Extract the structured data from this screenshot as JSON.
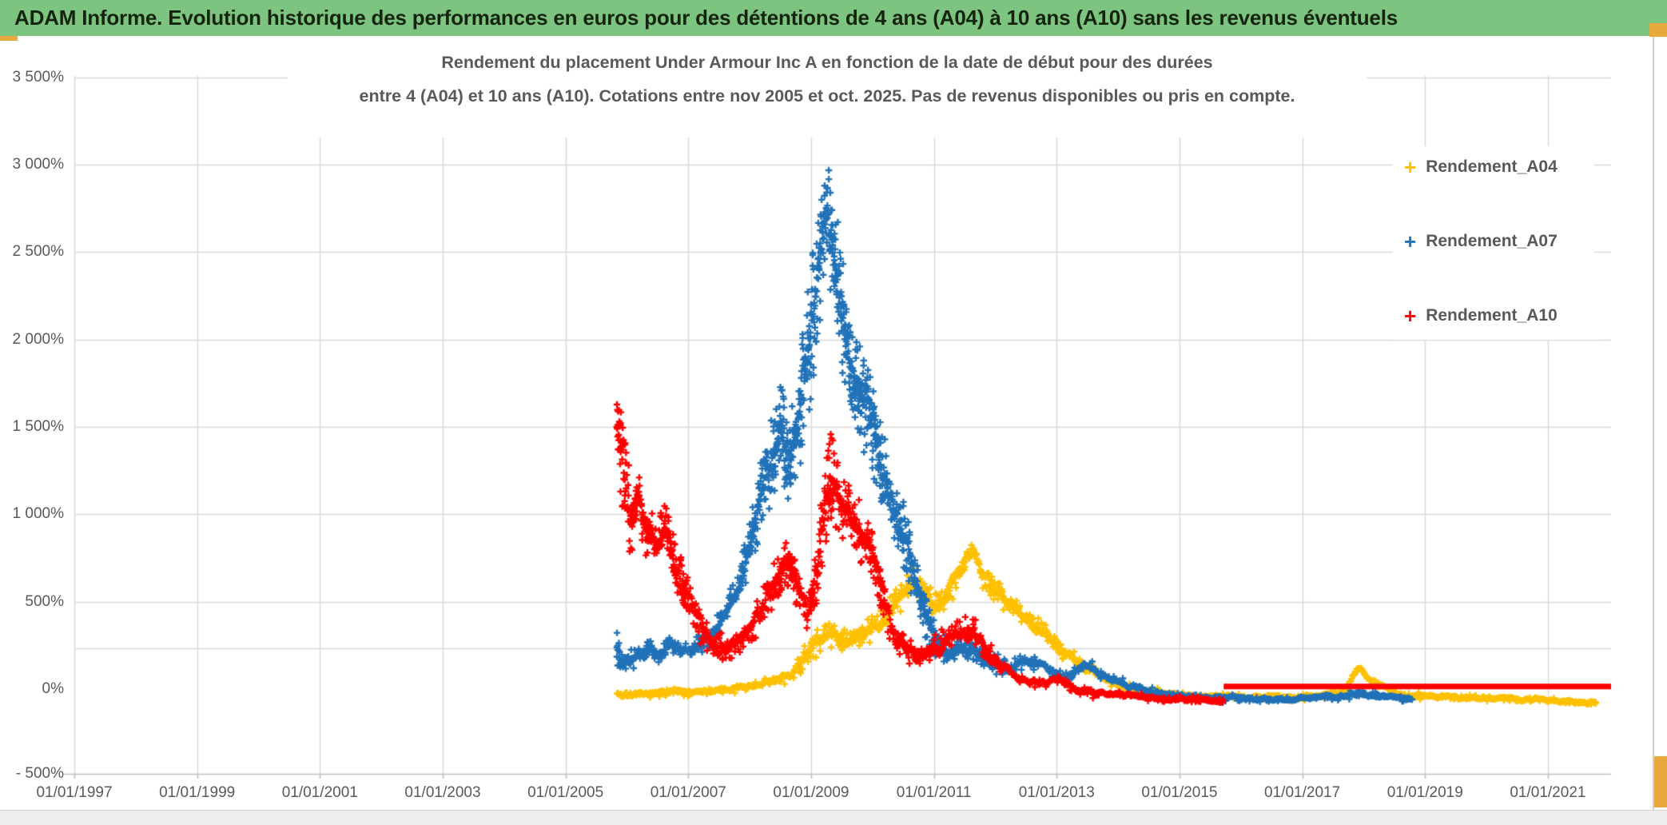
{
  "banner": {
    "title": "ADAM Informe. Evolution historique des performances en euros pour des détentions de 4 ans (A04) à 10 ans (A10) sans les revenus éventuels",
    "background_color": "#7CC47F"
  },
  "chart": {
    "title_line1": "Rendement du placement Under Armour Inc A en fonction de la date de début pour des durées",
    "title_line2": "entre 4 (A04) et 10 ans (A10). Cotations entre nov 2005 et oct. 2025. Pas de revenus disponibles ou pris en compte.",
    "grid_color": "#D9D9D9",
    "axis_line_color": "#BFBFBF",
    "axis_text_color": "#595959"
  },
  "chart_data": {
    "type": "scatter",
    "marker": "plus",
    "legend_position": "right-top",
    "x_axis": {
      "range_years": [
        1997,
        2022.05
      ],
      "ticks": [
        {
          "label": "01/01/1997",
          "year": 1997
        },
        {
          "label": "01/01/1999",
          "year": 1999
        },
        {
          "label": "01/01/2001",
          "year": 2001
        },
        {
          "label": "01/01/2003",
          "year": 2003
        },
        {
          "label": "01/01/2005",
          "year": 2005
        },
        {
          "label": "01/01/2007",
          "year": 2007
        },
        {
          "label": "01/01/2009",
          "year": 2009
        },
        {
          "label": "01/01/2011",
          "year": 2011
        },
        {
          "label": "01/01/2013",
          "year": 2013
        },
        {
          "label": "01/01/2015",
          "year": 2015
        },
        {
          "label": "01/01/2017",
          "year": 2017
        },
        {
          "label": "01/01/2019",
          "year": 2019
        },
        {
          "label": "01/01/2021",
          "year": 2021
        }
      ]
    },
    "y_axis": {
      "range_pct": [
        -500,
        3500
      ],
      "gridline_values": [
        3500,
        3000,
        2500,
        2000,
        1500,
        1000,
        500
      ],
      "reference_line_pct": 235,
      "ticks": [
        {
          "label": "3 500%",
          "value": 3500
        },
        {
          "label": "3 000%",
          "value": 3000
        },
        {
          "label": "2 500%",
          "value": 2500
        },
        {
          "label": "2 000%",
          "value": 2000
        },
        {
          "label": "1 500%",
          "value": 1500
        },
        {
          "label": "1 000%",
          "value": 1000
        },
        {
          "label": "500%",
          "value": 500
        },
        {
          "label": "0%",
          "value": 0
        },
        {
          "label": "- 500%",
          "value": -500
        }
      ]
    },
    "series": [
      {
        "name": "Rendement_A04",
        "color": "#FFC000",
        "seed": 11,
        "anchors": [
          [
            2005.84,
            -25,
            30
          ],
          [
            2006.1,
            -35,
            25
          ],
          [
            2006.4,
            -25,
            22
          ],
          [
            2006.7,
            -15,
            22
          ],
          [
            2007.0,
            -20,
            22
          ],
          [
            2007.3,
            -10,
            22
          ],
          [
            2007.6,
            0,
            24
          ],
          [
            2007.9,
            12,
            26
          ],
          [
            2008.2,
            30,
            30
          ],
          [
            2008.5,
            55,
            35
          ],
          [
            2008.75,
            95,
            50
          ],
          [
            2008.95,
            220,
            100
          ],
          [
            2009.15,
            290,
            85
          ],
          [
            2009.35,
            320,
            70
          ],
          [
            2009.55,
            270,
            60
          ],
          [
            2009.75,
            285,
            60
          ],
          [
            2010.0,
            350,
            70
          ],
          [
            2010.25,
            430,
            80
          ],
          [
            2010.5,
            550,
            90
          ],
          [
            2010.65,
            620,
            85
          ],
          [
            2010.9,
            510,
            80
          ],
          [
            2011.1,
            480,
            75
          ],
          [
            2011.35,
            610,
            90
          ],
          [
            2011.55,
            730,
            90
          ],
          [
            2011.65,
            800,
            55
          ],
          [
            2011.8,
            650,
            80
          ],
          [
            2012.0,
            560,
            70
          ],
          [
            2012.25,
            480,
            65
          ],
          [
            2012.55,
            400,
            60
          ],
          [
            2012.85,
            300,
            55
          ],
          [
            2013.15,
            200,
            50
          ],
          [
            2013.45,
            130,
            42
          ],
          [
            2013.75,
            70,
            35
          ],
          [
            2014.05,
            20,
            28
          ],
          [
            2014.45,
            -10,
            24
          ],
          [
            2014.85,
            -30,
            20
          ],
          [
            2015.35,
            -40,
            18
          ],
          [
            2015.85,
            -45,
            17
          ],
          [
            2016.35,
            -50,
            16
          ],
          [
            2016.85,
            -45,
            16
          ],
          [
            2017.35,
            -40,
            16
          ],
          [
            2017.7,
            -15,
            25
          ],
          [
            2017.88,
            110,
            45
          ],
          [
            2018.0,
            95,
            40
          ],
          [
            2018.15,
            45,
            30
          ],
          [
            2018.45,
            -20,
            20
          ],
          [
            2018.8,
            -40,
            16
          ],
          [
            2019.3,
            -45,
            15
          ],
          [
            2019.8,
            -50,
            15
          ],
          [
            2020.3,
            -55,
            15
          ],
          [
            2020.8,
            -60,
            15
          ],
          [
            2021.3,
            -70,
            15
          ],
          [
            2021.6,
            -82,
            14
          ],
          [
            2021.79,
            -75,
            12
          ]
        ]
      },
      {
        "name": "Rendement_A07",
        "color": "#2172B8",
        "seed": 22,
        "anchors": [
          [
            2005.84,
            230,
            140
          ],
          [
            2006.0,
            155,
            60
          ],
          [
            2006.2,
            200,
            55
          ],
          [
            2006.4,
            235,
            55
          ],
          [
            2006.55,
            185,
            50
          ],
          [
            2006.7,
            270,
            55
          ],
          [
            2006.85,
            215,
            50
          ],
          [
            2007.05,
            235,
            50
          ],
          [
            2007.25,
            265,
            55
          ],
          [
            2007.45,
            330,
            70
          ],
          [
            2007.6,
            430,
            90
          ],
          [
            2007.75,
            540,
            100
          ],
          [
            2007.9,
            680,
            130
          ],
          [
            2008.05,
            900,
            180
          ],
          [
            2008.2,
            1150,
            210
          ],
          [
            2008.35,
            1300,
            240
          ],
          [
            2008.5,
            1480,
            280
          ],
          [
            2008.65,
            1320,
            260
          ],
          [
            2008.8,
            1550,
            320
          ],
          [
            2008.95,
            1900,
            380
          ],
          [
            2009.1,
            2350,
            380
          ],
          [
            2009.25,
            2700,
            330
          ],
          [
            2009.35,
            2550,
            350
          ],
          [
            2009.5,
            2150,
            350
          ],
          [
            2009.65,
            1850,
            300
          ],
          [
            2009.8,
            1700,
            280
          ],
          [
            2010.0,
            1500,
            280
          ],
          [
            2010.2,
            1200,
            250
          ],
          [
            2010.45,
            950,
            210
          ],
          [
            2010.65,
            680,
            180
          ],
          [
            2010.85,
            430,
            140
          ],
          [
            2011.05,
            270,
            100
          ],
          [
            2011.25,
            200,
            80
          ],
          [
            2011.45,
            250,
            75
          ],
          [
            2011.65,
            215,
            65
          ],
          [
            2011.95,
            150,
            55
          ],
          [
            2012.25,
            130,
            48
          ],
          [
            2012.55,
            160,
            48
          ],
          [
            2012.85,
            105,
            40
          ],
          [
            2013.15,
            65,
            32
          ],
          [
            2013.45,
            140,
            40
          ],
          [
            2013.75,
            80,
            30
          ],
          [
            2014.1,
            30,
            25
          ],
          [
            2014.5,
            -10,
            22
          ],
          [
            2015.0,
            -40,
            18
          ],
          [
            2015.5,
            -50,
            17
          ],
          [
            2016.0,
            -55,
            16
          ],
          [
            2016.5,
            -62,
            15
          ],
          [
            2017.0,
            -55,
            15
          ],
          [
            2017.5,
            -45,
            15
          ],
          [
            2017.95,
            -28,
            17
          ],
          [
            2018.2,
            -35,
            15
          ],
          [
            2018.5,
            -48,
            14
          ],
          [
            2018.79,
            -58,
            13
          ]
        ]
      },
      {
        "name": "Rendement_A10",
        "color": "#FF0000",
        "seed": 33,
        "anchors": [
          [
            2005.84,
            1480,
            360
          ],
          [
            2005.92,
            1280,
            260
          ],
          [
            2006.05,
            1000,
            240
          ],
          [
            2006.2,
            1080,
            180
          ],
          [
            2006.35,
            880,
            170
          ],
          [
            2006.5,
            800,
            160
          ],
          [
            2006.62,
            930,
            170
          ],
          [
            2006.78,
            720,
            150
          ],
          [
            2007.0,
            530,
            120
          ],
          [
            2007.2,
            360,
            100
          ],
          [
            2007.45,
            235,
            85
          ],
          [
            2007.7,
            255,
            85
          ],
          [
            2007.95,
            305,
            85
          ],
          [
            2008.2,
            450,
            110
          ],
          [
            2008.45,
            640,
            130
          ],
          [
            2008.6,
            740,
            140
          ],
          [
            2008.78,
            590,
            120
          ],
          [
            2008.95,
            420,
            110
          ],
          [
            2009.1,
            680,
            190
          ],
          [
            2009.3,
            1230,
            280
          ],
          [
            2009.42,
            1120,
            240
          ],
          [
            2009.58,
            1000,
            200
          ],
          [
            2009.78,
            900,
            180
          ],
          [
            2009.98,
            790,
            150
          ],
          [
            2010.15,
            560,
            130
          ],
          [
            2010.32,
            320,
            100
          ],
          [
            2010.5,
            240,
            80
          ],
          [
            2010.8,
            205,
            70
          ],
          [
            2011.05,
            255,
            75
          ],
          [
            2011.25,
            300,
            80
          ],
          [
            2011.45,
            320,
            85
          ],
          [
            2011.62,
            345,
            85
          ],
          [
            2011.82,
            225,
            65
          ],
          [
            2012.1,
            135,
            50
          ],
          [
            2012.4,
            65,
            38
          ],
          [
            2012.7,
            35,
            32
          ],
          [
            2013.0,
            65,
            32
          ],
          [
            2013.3,
            -5,
            28
          ],
          [
            2013.7,
            -25,
            24
          ],
          [
            2014.2,
            -40,
            20
          ],
          [
            2014.7,
            -55,
            18
          ],
          [
            2015.2,
            -60,
            17
          ],
          [
            2015.72,
            -68,
            15
          ]
        ]
      }
    ],
    "red_flat_segment": {
      "series": "Rendement_A10",
      "from_year": 2015.72,
      "to_year": 2022.04,
      "value_pct": 15
    }
  }
}
